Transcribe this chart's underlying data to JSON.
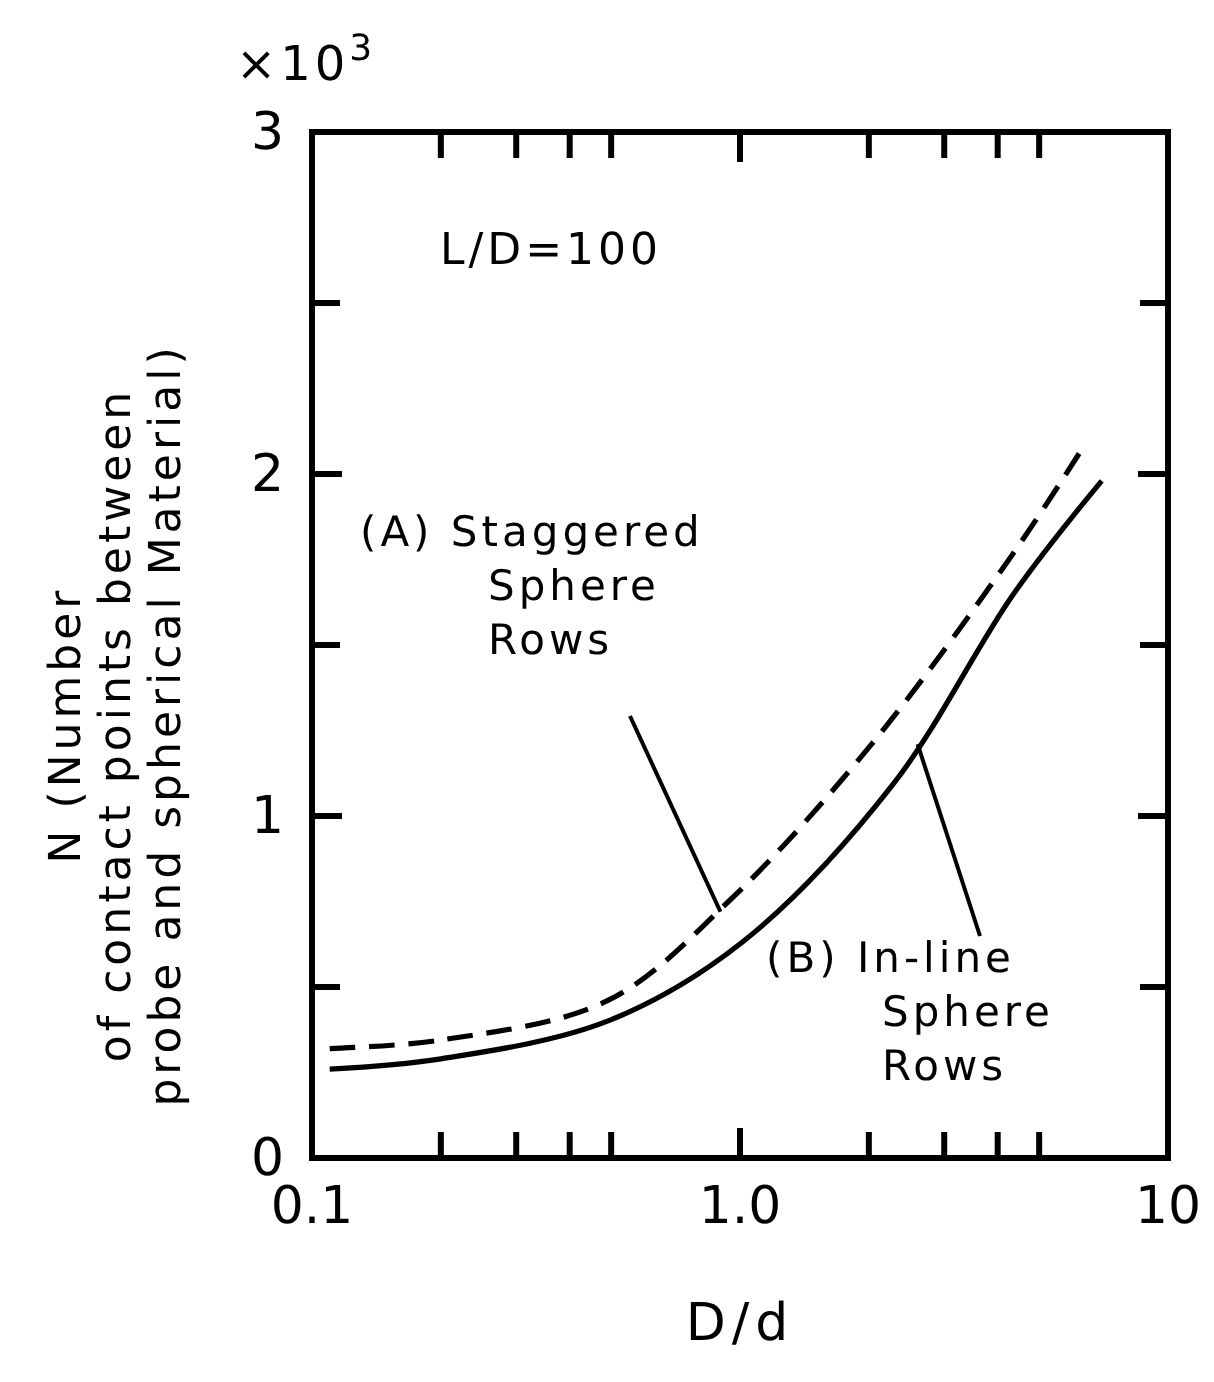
{
  "chart_data": {
    "type": "line",
    "xlabel": "D/d",
    "ylabel": "N (Number\nof contact points between\nprobe and spherical Material)",
    "log": "x",
    "xlim": [
      0.1,
      10
    ],
    "xticks": [
      0.1,
      {
        "value": 0.2,
        "label": null
      },
      {
        "value": 0.3,
        "label": null
      },
      {
        "value": 0.4,
        "label": null
      },
      {
        "value": 0.5,
        "label": null
      },
      {
        "value": 1,
        "label": "1.0"
      },
      {
        "value": 2,
        "label": null
      },
      {
        "value": 3,
        "label": null
      },
      {
        "value": 4,
        "label": null
      },
      {
        "value": 5,
        "label": null
      },
      10
    ],
    "ylim": [
      0,
      3
    ],
    "yticks": [
      0,
      {
        "value": 0.5,
        "label": null
      },
      1,
      {
        "value": 1.5,
        "label": null
      },
      2,
      {
        "value": 2.5,
        "label": null
      },
      3
    ],
    "grid": false,
    "marker": "none",
    "series": [
      {
        "color": "#000000",
        "line_style": "dashed",
        "x": [
          0.11,
          0.2,
          0.49,
          0.94,
          2.03,
          4.36,
          6.2
        ],
        "values": [
          0.32,
          0.345,
          0.46,
          0.75,
          1.21,
          1.77,
          2.06
        ]
      },
      {
        "color": "#000000",
        "line_style": "solid",
        "x": [
          0.11,
          0.2,
          0.49,
          1.01,
          2.27,
          4.36,
          7.0
        ],
        "values": [
          0.26,
          0.29,
          0.4,
          0.63,
          1.09,
          1.65,
          1.98
        ]
      }
    ],
    "annotations": [
      "×10$^{3}$",
      "L/D=100",
      {
        "text": "(A) Staggered Sphere Rows",
        "x": 0.9,
        "y": 0.72
      },
      {
        "text": "(B) In-line Sphere Rows",
        "x": 2.6,
        "y": 1.21
      }
    ]
  }
}
